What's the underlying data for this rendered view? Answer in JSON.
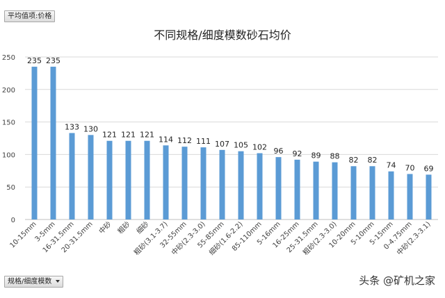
{
  "pivot": {
    "value_field_label": "平均值项:价格",
    "axis_field_label": "规格/细度模数"
  },
  "watermark": "头条 @矿机之家",
  "colors": {
    "bar": "#5b9bd5",
    "grid": "#d9d9d9",
    "text": "#404040"
  },
  "chart_data": {
    "type": "bar",
    "title": "不同规格/细度模数砂石均价",
    "xlabel": "",
    "ylabel": "",
    "ylim": [
      0,
      250
    ],
    "yticks": [
      0,
      50,
      100,
      150,
      200,
      250
    ],
    "grid": true,
    "legend": "none",
    "categories": [
      "10-15mm",
      "3-5mm",
      "16-31.5mm",
      "20-31.5mm",
      "中砂",
      "粗砂",
      "细砂",
      "粗砂(3.1-3.7)",
      "32-55mm",
      "中砂(2.3-3.0)",
      "55-85mm",
      "细砂(1.6-2.2)",
      "85-110mm",
      "5-16mm",
      "16-25mm",
      "25-31.5mm",
      "粗砂(2.3-3.0)",
      "10-20mm",
      "5-10mm",
      "5-15mm",
      "0-4.75mm",
      "中砂(2.3-3.1)"
    ],
    "values": [
      235,
      235,
      133,
      130,
      121,
      121,
      121,
      114,
      112,
      111,
      107,
      105,
      102,
      96,
      92,
      89,
      88,
      82,
      82,
      74,
      70,
      69
    ]
  }
}
